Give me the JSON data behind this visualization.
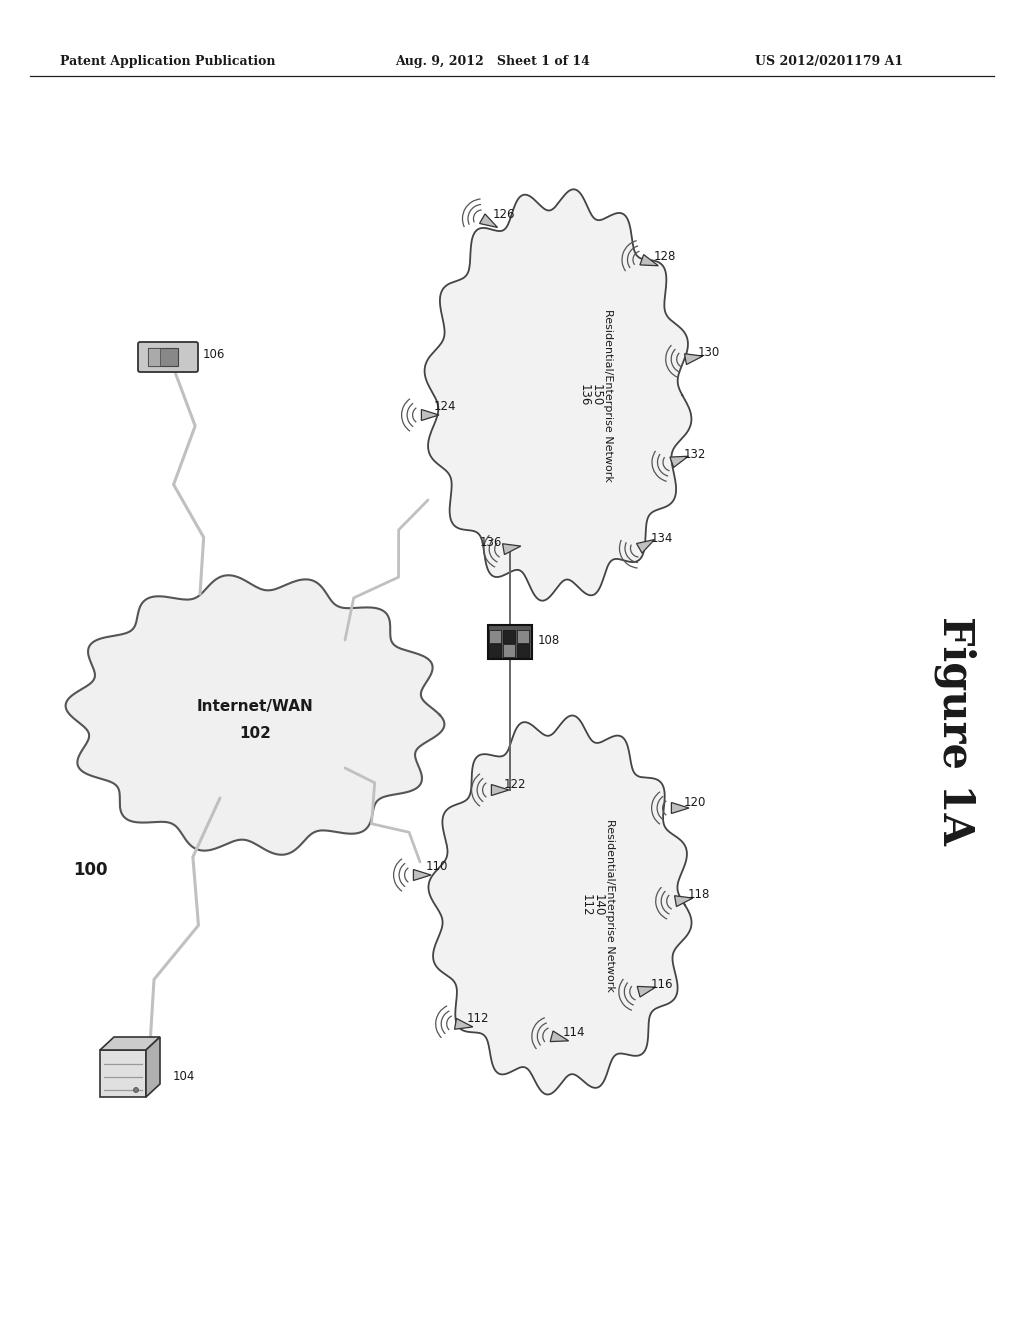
{
  "header_left": "Patent Application Publication",
  "header_mid": "Aug. 9, 2012   Sheet 1 of 14",
  "header_right": "US 2012/0201179 A1",
  "figure_label": "Figure 1A",
  "bg_color": "#ffffff",
  "text_color": "#1a1a1a",
  "gray_sensor": "#b8b8b8",
  "cloud_fill": "#f2f2f2",
  "cloud_edge": "#555555",
  "wan_fill": "#f0f0f0",
  "line_color": "#aaaaaa"
}
